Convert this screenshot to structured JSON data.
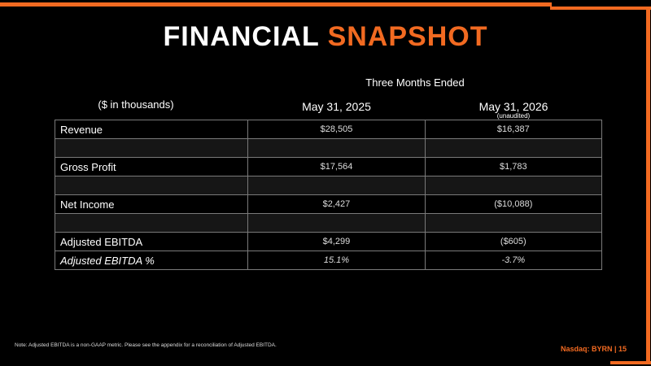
{
  "header": {
    "title_part1": "FINANCIAL",
    "title_part2": "SNAPSHOT"
  },
  "table": {
    "period_header": "Three Months Ended",
    "unit_note": "($ in thousands)",
    "columns": [
      {
        "label": "May 31, 2025"
      },
      {
        "label": "May 31, 2026",
        "sublabel": "(unaudited)"
      }
    ],
    "rows": [
      {
        "label": "Revenue",
        "values": [
          "$28,505",
          "$16,387"
        ]
      },
      {
        "label": "Gross Profit",
        "values": [
          "$17,564",
          "$1,783"
        ]
      },
      {
        "label": "Net Income",
        "values": [
          "$2,427",
          "($10,088)"
        ]
      },
      {
        "label": "Adjusted EBITDA",
        "values": [
          "$4,299",
          "($605)"
        ]
      },
      {
        "label": "Adjusted EBITDA %",
        "values": [
          "15.1%",
          "-3.7%"
        ]
      }
    ]
  },
  "footer": {
    "note": "Note: Adjusted EBITDA is a non-GAAP metric. Please see the appendix for a reconciliation of Adjusted EBITDA.",
    "ticker": "Nasdaq: BYRN | 15"
  }
}
